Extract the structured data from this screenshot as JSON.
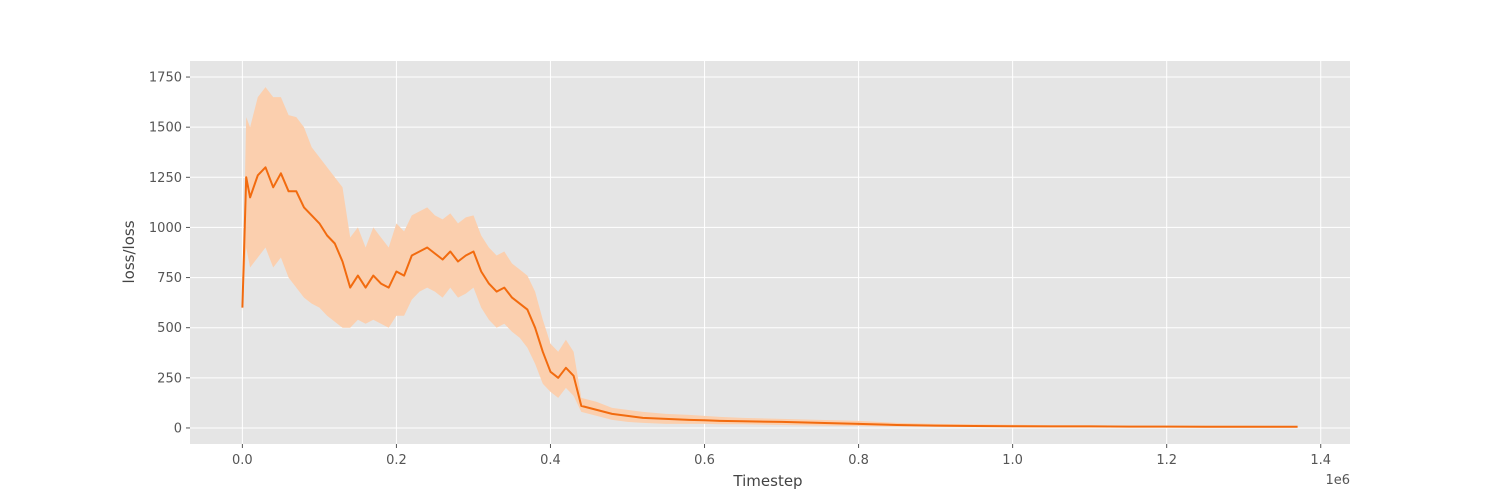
{
  "chart_data": {
    "type": "line",
    "xlabel": "Timestep",
    "ylabel": "loss/loss",
    "x_offset_label": "1e6",
    "xlim": [
      -0.068,
      1.438
    ],
    "ylim": [
      -80,
      1830
    ],
    "x_ticks": [
      0.0,
      0.2,
      0.4,
      0.6,
      0.8,
      1.0,
      1.2,
      1.4
    ],
    "x_tick_labels": [
      "0.0",
      "0.2",
      "0.4",
      "0.6",
      "0.8",
      "1.0",
      "1.2",
      "1.4"
    ],
    "y_ticks": [
      0,
      250,
      500,
      750,
      1000,
      1250,
      1500,
      1750
    ],
    "y_tick_labels": [
      "0",
      "250",
      "500",
      "750",
      "1000",
      "1250",
      "1500",
      "1750"
    ],
    "grid": true,
    "style": "ggplot",
    "colors": {
      "line": "#f26b0f",
      "band": "#fbcfae",
      "plot_bg": "#e5e5e5",
      "grid": "#ffffff"
    },
    "series": [
      {
        "x": [
          0.0,
          0.005,
          0.01,
          0.02,
          0.03,
          0.04,
          0.05,
          0.06,
          0.07,
          0.08,
          0.09,
          0.1,
          0.11,
          0.12,
          0.13,
          0.14,
          0.15,
          0.16,
          0.17,
          0.18,
          0.19,
          0.2,
          0.21,
          0.22,
          0.23,
          0.24,
          0.25,
          0.26,
          0.27,
          0.28,
          0.29,
          0.3,
          0.31,
          0.32,
          0.33,
          0.34,
          0.35,
          0.36,
          0.37,
          0.38,
          0.39,
          0.4,
          0.41,
          0.42,
          0.43,
          0.44,
          0.45,
          0.46,
          0.48,
          0.5,
          0.52,
          0.55,
          0.58,
          0.6,
          0.62,
          0.65,
          0.7,
          0.75,
          0.8,
          0.85,
          0.9,
          0.95,
          1.0,
          1.05,
          1.1,
          1.15,
          1.2,
          1.25,
          1.3,
          1.35,
          1.37
        ],
        "y": [
          600,
          1250,
          1150,
          1260,
          1300,
          1200,
          1270,
          1180,
          1180,
          1100,
          1060,
          1020,
          960,
          920,
          830,
          700,
          760,
          700,
          760,
          720,
          700,
          780,
          760,
          860,
          880,
          900,
          870,
          840,
          880,
          830,
          860,
          880,
          780,
          720,
          680,
          700,
          650,
          620,
          590,
          500,
          380,
          280,
          250,
          300,
          260,
          110,
          100,
          90,
          70,
          60,
          50,
          45,
          40,
          38,
          35,
          33,
          30,
          25,
          20,
          15,
          12,
          10,
          9,
          8,
          8,
          7,
          7,
          6,
          6,
          6,
          6
        ],
        "y_lower": [
          580,
          900,
          800,
          850,
          900,
          800,
          850,
          750,
          700,
          650,
          620,
          600,
          560,
          530,
          500,
          500,
          540,
          520,
          540,
          520,
          500,
          560,
          560,
          640,
          680,
          700,
          680,
          650,
          700,
          650,
          670,
          700,
          600,
          540,
          500,
          520,
          480,
          450,
          400,
          320,
          220,
          180,
          150,
          200,
          160,
          80,
          70,
          60,
          40,
          30,
          25,
          20,
          20,
          20,
          18,
          18,
          15,
          12,
          10,
          8,
          6,
          5,
          4,
          3,
          3,
          3,
          3,
          2,
          2,
          2,
          2
        ],
        "y_upper": [
          620,
          1550,
          1500,
          1650,
          1700,
          1650,
          1650,
          1560,
          1550,
          1500,
          1400,
          1350,
          1300,
          1250,
          1200,
          950,
          1000,
          900,
          1000,
          950,
          900,
          1020,
          980,
          1060,
          1080,
          1100,
          1060,
          1040,
          1070,
          1020,
          1050,
          1060,
          960,
          900,
          860,
          880,
          820,
          790,
          760,
          680,
          540,
          420,
          380,
          440,
          380,
          150,
          140,
          130,
          100,
          90,
          80,
          70,
          65,
          60,
          55,
          50,
          45,
          40,
          35,
          25,
          20,
          18,
          16,
          14,
          14,
          12,
          12,
          11,
          11,
          10,
          10
        ]
      }
    ]
  }
}
